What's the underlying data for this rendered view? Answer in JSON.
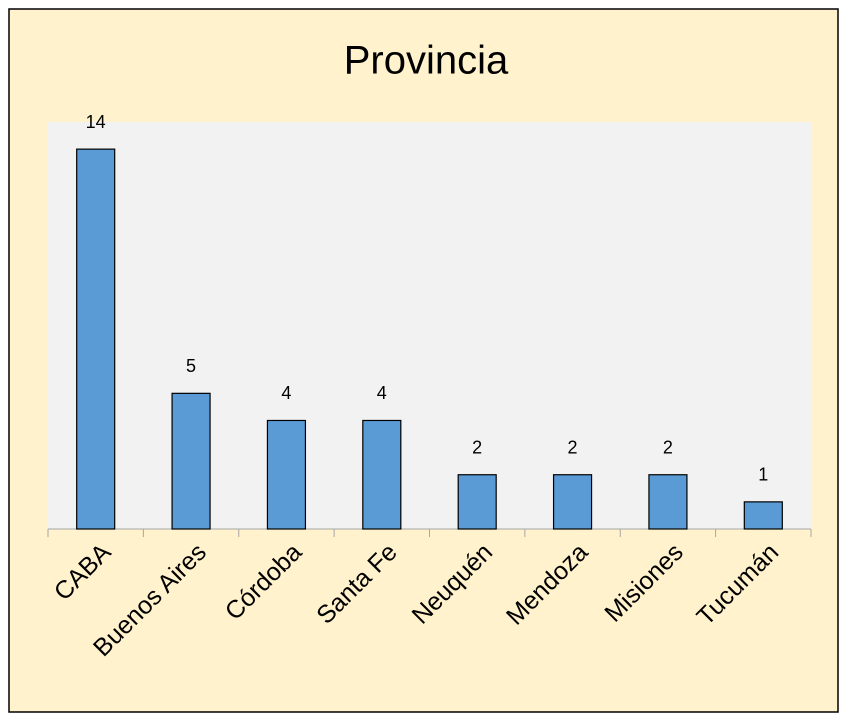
{
  "chart_data": {
    "type": "bar",
    "title": "Provincia",
    "categories": [
      "CABA",
      "Buenos Aires",
      "Córdoba",
      "Santa Fe",
      "Neuquén",
      "Mendoza",
      "Misiones",
      "Tucumán"
    ],
    "values": [
      14,
      5,
      4,
      4,
      2,
      2,
      2,
      1
    ],
    "color": "#5b9bd5",
    "ylim": [
      0,
      15
    ]
  }
}
